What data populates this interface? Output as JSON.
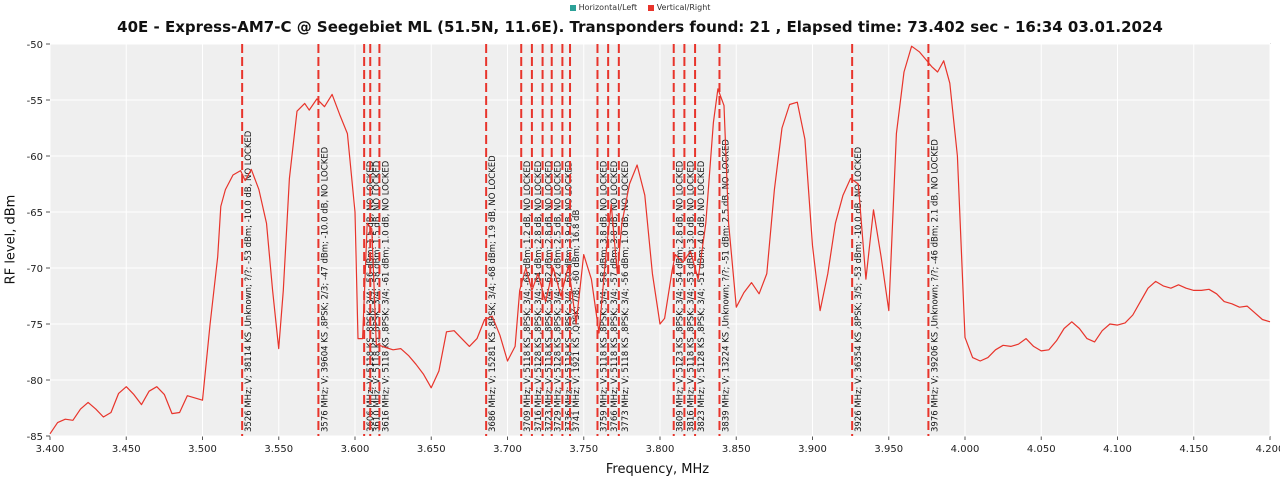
{
  "legend": [
    {
      "name": "Horizontal/Left",
      "color": "#2ca198"
    },
    {
      "name": "Vertical/Right",
      "color": "#e8342b"
    }
  ],
  "chart_data": {
    "type": "line",
    "title": "40E - Express-AM7-C @ Seegebiet ML (51.5N, 11.6E). Transponders found: 21 , Elapsed time: 73.402 sec - 16:34 03.01.2024",
    "xlabel": "Frequency, MHz",
    "ylabel": "RF level, dBm",
    "xlim": [
      3.4,
      4.2
    ],
    "ylim": [
      -85,
      -50
    ],
    "xticks": [
      "3.400",
      "3.450",
      "3.500",
      "3.550",
      "3.600",
      "3.650",
      "3.700",
      "3.750",
      "3.800",
      "3.850",
      "3.900",
      "3.950",
      "4.000",
      "4.050",
      "4.100",
      "4.150",
      "4.200"
    ],
    "yticks": [
      "-50",
      "-55",
      "-60",
      "-65",
      "-70",
      "-75",
      "-80",
      "-85"
    ],
    "grid": true,
    "series": [
      {
        "name": "Vertical/Right",
        "color": "#e8342b",
        "points": [
          [
            3.4,
            -84.8
          ],
          [
            3.405,
            -83.8
          ],
          [
            3.41,
            -83.5
          ],
          [
            3.415,
            -83.6
          ],
          [
            3.42,
            -82.6
          ],
          [
            3.425,
            -82.0
          ],
          [
            3.43,
            -82.6
          ],
          [
            3.435,
            -83.3
          ],
          [
            3.44,
            -82.9
          ],
          [
            3.445,
            -81.2
          ],
          [
            3.45,
            -80.6
          ],
          [
            3.455,
            -81.3
          ],
          [
            3.46,
            -82.2
          ],
          [
            3.465,
            -81.0
          ],
          [
            3.47,
            -80.6
          ],
          [
            3.475,
            -81.3
          ],
          [
            3.48,
            -83.0
          ],
          [
            3.485,
            -82.9
          ],
          [
            3.49,
            -81.4
          ],
          [
            3.495,
            -81.6
          ],
          [
            3.5,
            -81.8
          ],
          [
            3.505,
            -75.0
          ],
          [
            3.51,
            -69.0
          ],
          [
            3.512,
            -64.5
          ],
          [
            3.515,
            -63.0
          ],
          [
            3.52,
            -61.7
          ],
          [
            3.525,
            -61.3
          ],
          [
            3.528,
            -62.2
          ],
          [
            3.532,
            -61.2
          ],
          [
            3.537,
            -63.0
          ],
          [
            3.542,
            -66.0
          ],
          [
            3.546,
            -72.0
          ],
          [
            3.55,
            -77.2
          ],
          [
            3.553,
            -72.0
          ],
          [
            3.557,
            -62.0
          ],
          [
            3.562,
            -56.0
          ],
          [
            3.567,
            -55.3
          ],
          [
            3.57,
            -55.9
          ],
          [
            3.575,
            -54.9
          ],
          [
            3.58,
            -55.6
          ],
          [
            3.585,
            -54.5
          ],
          [
            3.59,
            -56.3
          ],
          [
            3.595,
            -58.0
          ],
          [
            3.6,
            -65.0
          ],
          [
            3.602,
            -76.3
          ],
          [
            3.605,
            -76.3
          ],
          [
            3.608,
            -66.0
          ],
          [
            3.611,
            -66.5
          ],
          [
            3.614,
            -76.8
          ],
          [
            3.62,
            -77.1
          ],
          [
            3.625,
            -77.3
          ],
          [
            3.63,
            -77.2
          ],
          [
            3.635,
            -77.8
          ],
          [
            3.64,
            -78.6
          ],
          [
            3.645,
            -79.5
          ],
          [
            3.65,
            -80.7
          ],
          [
            3.655,
            -79.2
          ],
          [
            3.66,
            -75.7
          ],
          [
            3.665,
            -75.6
          ],
          [
            3.67,
            -76.3
          ],
          [
            3.675,
            -77.0
          ],
          [
            3.68,
            -76.3
          ],
          [
            3.685,
            -74.6
          ],
          [
            3.69,
            -74.3
          ],
          [
            3.695,
            -76.0
          ],
          [
            3.7,
            -78.3
          ],
          [
            3.705,
            -77.0
          ],
          [
            3.708,
            -72.0
          ],
          [
            3.712,
            -70.0
          ],
          [
            3.716,
            -72.0
          ],
          [
            3.72,
            -70.5
          ],
          [
            3.725,
            -73.0
          ],
          [
            3.73,
            -70.0
          ],
          [
            3.735,
            -72.5
          ],
          [
            3.74,
            -69.8
          ],
          [
            3.745,
            -75.0
          ],
          [
            3.75,
            -68.8
          ],
          [
            3.755,
            -71.0
          ],
          [
            3.76,
            -75.8
          ],
          [
            3.765,
            -68.2
          ],
          [
            3.768,
            -64.3
          ],
          [
            3.772,
            -70.5
          ],
          [
            3.775,
            -66.0
          ],
          [
            3.78,
            -62.5
          ],
          [
            3.785,
            -60.8
          ],
          [
            3.79,
            -63.5
          ],
          [
            3.795,
            -70.5
          ],
          [
            3.8,
            -75.0
          ],
          [
            3.803,
            -74.5
          ],
          [
            3.808,
            -70.2
          ],
          [
            3.81,
            -68.8
          ],
          [
            3.815,
            -69.5
          ],
          [
            3.82,
            -68.5
          ],
          [
            3.825,
            -71.0
          ],
          [
            3.83,
            -66.0
          ],
          [
            3.835,
            -57.0
          ],
          [
            3.838,
            -54.0
          ],
          [
            3.842,
            -55.5
          ],
          [
            3.845,
            -66.0
          ],
          [
            3.85,
            -73.5
          ],
          [
            3.855,
            -72.2
          ],
          [
            3.86,
            -71.3
          ],
          [
            3.865,
            -72.3
          ],
          [
            3.87,
            -70.5
          ],
          [
            3.875,
            -63.0
          ],
          [
            3.88,
            -57.5
          ],
          [
            3.885,
            -55.4
          ],
          [
            3.89,
            -55.2
          ],
          [
            3.895,
            -58.5
          ],
          [
            3.9,
            -68.0
          ],
          [
            3.905,
            -73.8
          ],
          [
            3.91,
            -70.5
          ],
          [
            3.915,
            -66.0
          ],
          [
            3.92,
            -63.5
          ],
          [
            3.925,
            -62.0
          ],
          [
            3.93,
            -62.5
          ],
          [
            3.935,
            -71.0
          ],
          [
            3.94,
            -64.8
          ],
          [
            3.945,
            -69.0
          ],
          [
            3.95,
            -73.8
          ],
          [
            3.955,
            -58.0
          ],
          [
            3.96,
            -52.5
          ],
          [
            3.965,
            -50.2
          ],
          [
            3.97,
            -50.7
          ],
          [
            3.975,
            -51.5
          ],
          [
            3.978,
            -52.0
          ],
          [
            3.982,
            -52.5
          ],
          [
            3.986,
            -51.5
          ],
          [
            3.99,
            -53.5
          ],
          [
            3.995,
            -60.0
          ],
          [
            4.0,
            -76.2
          ],
          [
            4.005,
            -78.0
          ],
          [
            4.01,
            -78.3
          ],
          [
            4.015,
            -78.0
          ],
          [
            4.02,
            -77.3
          ],
          [
            4.025,
            -76.9
          ],
          [
            4.03,
            -77.0
          ],
          [
            4.035,
            -76.8
          ],
          [
            4.04,
            -76.3
          ],
          [
            4.045,
            -77.0
          ],
          [
            4.05,
            -77.4
          ],
          [
            4.055,
            -77.3
          ],
          [
            4.06,
            -76.5
          ],
          [
            4.065,
            -75.4
          ],
          [
            4.07,
            -74.8
          ],
          [
            4.075,
            -75.4
          ],
          [
            4.08,
            -76.3
          ],
          [
            4.085,
            -76.6
          ],
          [
            4.09,
            -75.6
          ],
          [
            4.095,
            -75.0
          ],
          [
            4.1,
            -75.1
          ],
          [
            4.105,
            -74.9
          ],
          [
            4.11,
            -74.2
          ],
          [
            4.115,
            -73.0
          ],
          [
            4.12,
            -71.8
          ],
          [
            4.125,
            -71.2
          ],
          [
            4.13,
            -71.6
          ],
          [
            4.135,
            -71.8
          ],
          [
            4.14,
            -71.5
          ],
          [
            4.145,
            -71.8
          ],
          [
            4.15,
            -72.0
          ],
          [
            4.155,
            -72.0
          ],
          [
            4.16,
            -71.9
          ],
          [
            4.165,
            -72.3
          ],
          [
            4.17,
            -73.0
          ],
          [
            4.175,
            -73.2
          ],
          [
            4.18,
            -73.5
          ],
          [
            4.185,
            -73.4
          ],
          [
            4.19,
            -74.0
          ],
          [
            4.195,
            -74.6
          ],
          [
            4.2,
            -74.8
          ]
        ]
      }
    ],
    "transponders": [
      {
        "x": 3.526,
        "label": "3526 MHz; V; 38114 KS ,Unknown; ?/?; -53 dBm; -10.0 dB, NO LOCKED"
      },
      {
        "x": 3.576,
        "label": "3576 MHz; V; 39604 KS ,8PSK; 2/3; -47 dBm; -10.0 dB, NO LOCKED"
      },
      {
        "x": 3.606,
        "label": "3606 MHz; V; 5118 KS ,8PSK; 3/4; -56 dBm; 1.5 dB, NO LOCKED"
      },
      {
        "x": 3.61,
        "label": "3610 MHz; V; 5118 KS ,8PSK; 3/4; -58 dBm; 1.5 dB, NO LOCKED"
      },
      {
        "x": 3.616,
        "label": "3616 MHz; V; 5118 KS ,8PSK; 3/4; -61 dBm; 1.0 dB, NO LOCKED"
      },
      {
        "x": 3.686,
        "label": "3686 MHz; V; 15281 KS ,8PSK; 3/4; -68 dBm; 1.9 dB, NO LOCKED"
      },
      {
        "x": 3.709,
        "label": "3709 MHz; V; 5118 KS ,8PSK; 3/4; -66 dBm; 1.2 dB, NO LOCKED"
      },
      {
        "x": 3.716,
        "label": "3716 MHz; V; 5128 KS ,8PSK; 3/4; -64 dBm; 2.8 dB, NO LOCKED"
      },
      {
        "x": 3.723,
        "label": "3723 MHz; V; 5118 KS ,8PSK; 3/4; -62 dBm; 2.8 dB, NO LOCKED"
      },
      {
        "x": 3.729,
        "label": "3729 MHz; V; 5128 KS ,8PSK; 3/4; -62 dBm; 2.5 dB, NO LOCKED"
      },
      {
        "x": 3.736,
        "label": "3736 MHz; V; 5118 KS ,8PSK; 3/4; -60 dBm; 3.9 dB, NO LOCKED"
      },
      {
        "x": 3.741,
        "label": "3741 MHz; V; 1921 KS ,QPSK; 7/8; -60 dBm; 16.8 dB"
      },
      {
        "x": 3.759,
        "label": "3759 MHz; V; 5118 KS ,8PSK; 3/4; -58 dBm; 3.8 dB, NO LOCKED"
      },
      {
        "x": 3.766,
        "label": "3766 MHz; V; 5118 KS ,8PSK; 3/4; -57 dBm; 3.8 dB, NO LOCKED"
      },
      {
        "x": 3.773,
        "label": "3773 MHz; V; 5118 KS ,8PSK; 3/4; -56 dBm; 1.0 dB, NO LOCKED"
      },
      {
        "x": 3.809,
        "label": "3809 MHz; V; 5123 KS ,8PSK; 3/4; -54 dBm; 2.8 dB, NO LOCKED"
      },
      {
        "x": 3.816,
        "label": "3816 MHz; V; 5118 KS ,8PSK; 3/4; -53 dBm; 3.0 dB, NO LOCKED"
      },
      {
        "x": 3.823,
        "label": "3823 MHz; V; 5128 KS ,8PSK; 3/4; -51 dBm; 4.0 dB, NO LOCKED"
      },
      {
        "x": 3.839,
        "label": "3839 MHz; V; 13224 KS ,Unknown; ?/?; -51 dBm; 2.5 dB, NO LOCKED"
      },
      {
        "x": 3.926,
        "label": "3926 MHz; V; 36354 KS ,8PSK; 3/5; -53 dBm; -10.0 dB, NO LOCKED"
      },
      {
        "x": 3.976,
        "label": "3976 MHz; V; 39206 KS ,Unknown; ?/?; -46 dBm; 2.1 dB, NO LOCKED"
      }
    ]
  }
}
